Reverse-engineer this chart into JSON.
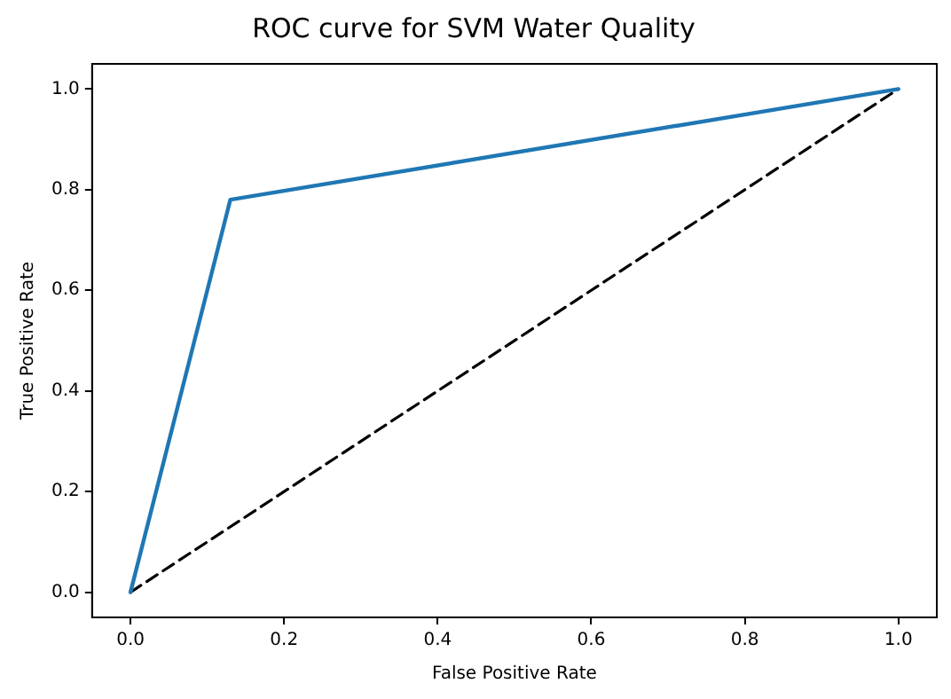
{
  "chart_data": {
    "type": "line",
    "title": "ROC curve for SVM Water Quality",
    "xlabel": "False Positive Rate",
    "ylabel": "True Positive Rate",
    "xlim": [
      -0.05,
      1.05
    ],
    "ylim": [
      -0.05,
      1.05
    ],
    "xticks": [
      {
        "value": 0,
        "label": "0.0"
      },
      {
        "value": 0.2,
        "label": "0.2"
      },
      {
        "value": 0.4,
        "label": "0.4"
      },
      {
        "value": 0.6,
        "label": "0.6"
      },
      {
        "value": 0.8,
        "label": "0.8"
      },
      {
        "value": 1,
        "label": "1.0"
      }
    ],
    "yticks": [
      {
        "value": 0,
        "label": "0.0"
      },
      {
        "value": 0.2,
        "label": "0.2"
      },
      {
        "value": 0.4,
        "label": "0.4"
      },
      {
        "value": 0.6,
        "label": "0.6"
      },
      {
        "value": 0.8,
        "label": "0.8"
      },
      {
        "value": 1,
        "label": "1.0"
      }
    ],
    "series": [
      {
        "color": "#1f77b4",
        "x": [
          0,
          0.13,
          1
        ],
        "values": [
          0,
          0.78,
          1
        ],
        "line_style": "solid"
      },
      {
        "color": "#000000",
        "x": [
          0,
          1
        ],
        "values": [
          0,
          1
        ],
        "line_style": "dashed"
      }
    ],
    "grid": false,
    "legend": false,
    "marker": "none"
  }
}
